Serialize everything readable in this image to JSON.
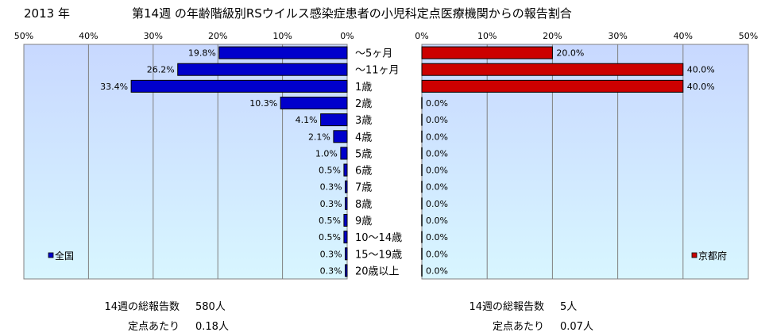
{
  "header": {
    "year": "2013 年",
    "title": "第14週 の年齢階級別RSウイルス感染症患者の小児科定点医療機関からの報告割合"
  },
  "colors": {
    "left_bar": "#0000cc",
    "right_bar": "#cc0000",
    "plot_bg_top": "#c8d8ff",
    "plot_bg_bottom": "#d8f6ff"
  },
  "chart_data": [
    {
      "type": "bar",
      "orientation": "horizontal",
      "direction": "right-to-left",
      "categories": [
        "～5ヶ月",
        "～11ヶ月",
        "1歳",
        "2歳",
        "3歳",
        "4歳",
        "5歳",
        "6歳",
        "7歳",
        "8歳",
        "9歳",
        "10～14歳",
        "15～19歳",
        "20歳以上"
      ],
      "series": [
        {
          "name": "全国",
          "values": [
            19.8,
            26.2,
            33.4,
            10.3,
            4.1,
            2.1,
            1.0,
            0.5,
            0.3,
            0.3,
            0.5,
            0.5,
            0.3,
            0.3
          ],
          "labels": [
            "19.8%",
            "26.2%",
            "33.4%",
            "10.3%",
            "4.1%",
            "2.1%",
            "1.0%",
            "0.5%",
            "0.3%",
            "0.3%",
            "0.5%",
            "0.5%",
            "0.3%",
            "0.3%"
          ]
        }
      ],
      "xlim": [
        0,
        50
      ],
      "xticks": [
        "50%",
        "40%",
        "30%",
        "20%",
        "10%",
        "0%"
      ],
      "grid": true,
      "legend_position": "bottom-left",
      "summary": {
        "reports_label": "14週の総報告数",
        "reports_value": "580人",
        "per_site_label": "定点あたり",
        "per_site_value": "0.18人"
      }
    },
    {
      "type": "bar",
      "orientation": "horizontal",
      "direction": "left-to-right",
      "categories": [
        "～5ヶ月",
        "～11ヶ月",
        "1歳",
        "2歳",
        "3歳",
        "4歳",
        "5歳",
        "6歳",
        "7歳",
        "8歳",
        "9歳",
        "10～14歳",
        "15～19歳",
        "20歳以上"
      ],
      "series": [
        {
          "name": "京都府",
          "values": [
            20.0,
            40.0,
            40.0,
            0,
            0,
            0,
            0,
            0,
            0,
            0,
            0,
            0,
            0,
            0
          ],
          "labels": [
            "20.0%",
            "40.0%",
            "40.0%",
            "0.0%",
            "0.0%",
            "0.0%",
            "0.0%",
            "0.0%",
            "0.0%",
            "0.0%",
            "0.0%",
            "0.0%",
            "0.0%",
            "0.0%"
          ]
        }
      ],
      "xlim": [
        0,
        50
      ],
      "xticks": [
        "0%",
        "10%",
        "20%",
        "30%",
        "40%",
        "50%"
      ],
      "grid": true,
      "legend_position": "bottom-right",
      "summary": {
        "reports_label": "14週の総報告数",
        "reports_value": "5人",
        "per_site_label": "定点あたり",
        "per_site_value": "0.07人"
      }
    }
  ]
}
